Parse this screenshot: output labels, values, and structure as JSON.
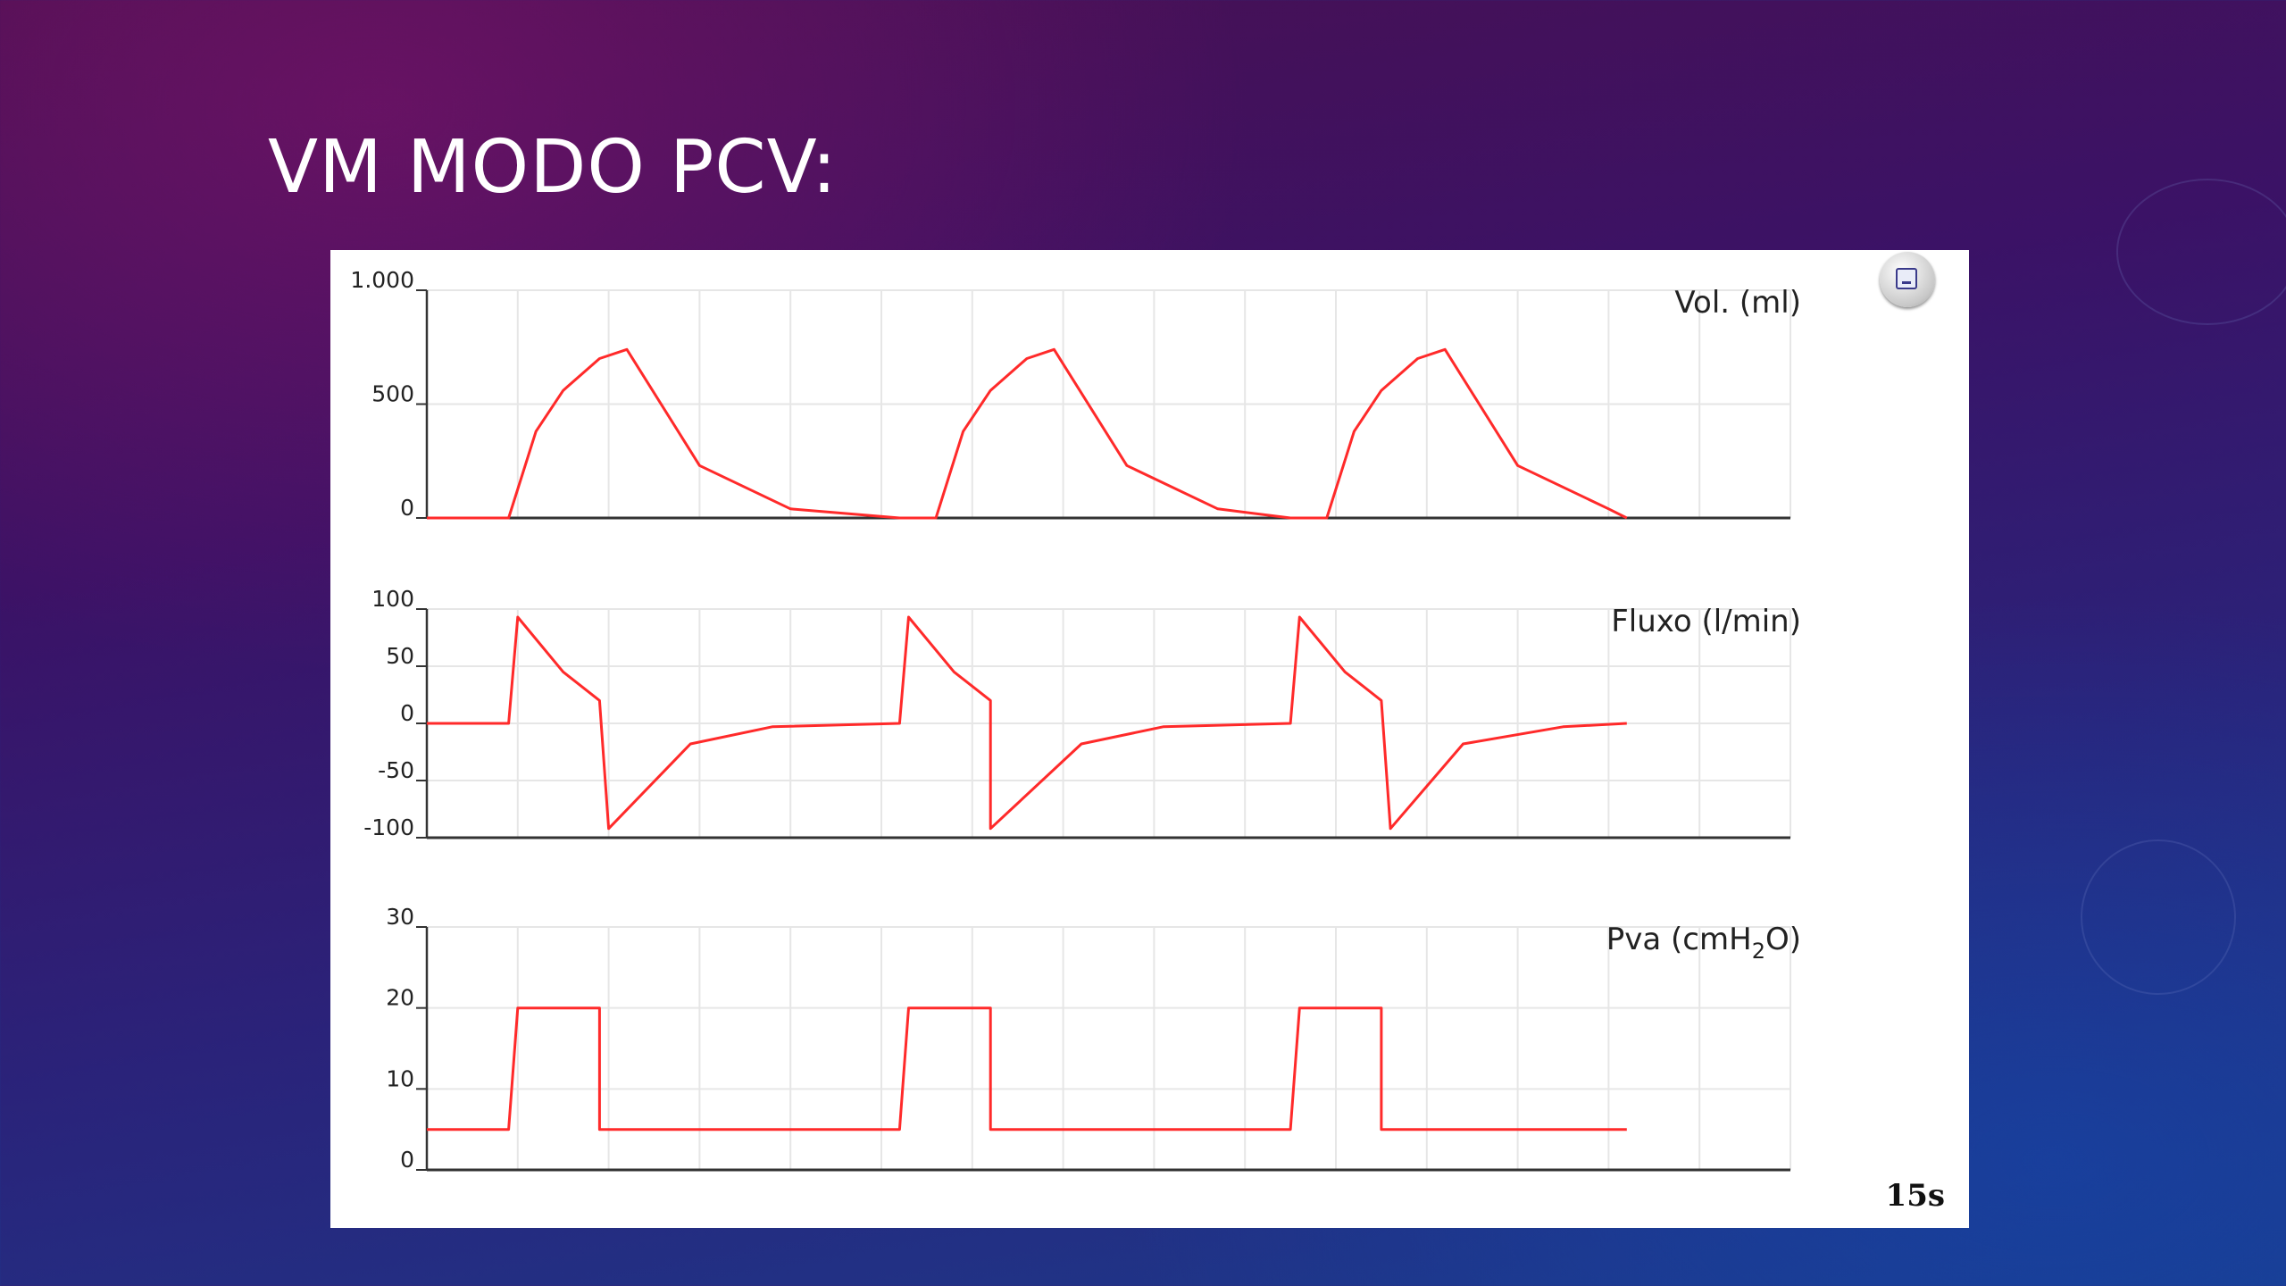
{
  "slide": {
    "title": "VM MODO PCV:"
  },
  "panel": {
    "duration_label": "15s",
    "minimize_icon": "minimize-icon"
  },
  "colors": {
    "trace": "#ff2a2a",
    "grid": "#e6e6e6",
    "axis": "#333333"
  },
  "chart_data": [
    {
      "type": "line",
      "label": "Vol. (ml)",
      "ylim": [
        0,
        1000
      ],
      "yticks": [
        "1.000",
        "500",
        "0"
      ],
      "ytick_values": [
        1000,
        500,
        0
      ],
      "xlim": [
        0,
        15
      ],
      "grid": true,
      "series": [
        {
          "x": [
            0,
            0.9,
            1.2,
            1.5,
            1.9,
            2.2,
            3.0,
            4.0,
            5.2,
            5.6,
            5.9,
            6.2,
            6.6,
            6.9,
            7.7,
            8.7,
            9.5,
            9.9,
            10.2,
            10.5,
            10.9,
            11.2,
            12.0,
            13.0,
            13.2
          ],
          "y": [
            0,
            0,
            380,
            560,
            700,
            740,
            230,
            40,
            0,
            0,
            380,
            560,
            700,
            740,
            230,
            40,
            0,
            0,
            380,
            560,
            700,
            740,
            230,
            40,
            0
          ]
        }
      ]
    },
    {
      "type": "line",
      "label": "Fluxo (l/min)",
      "ylim": [
        -100,
        100
      ],
      "yticks": [
        "100",
        "50",
        "0",
        "-50",
        "-100"
      ],
      "ytick_values": [
        100,
        50,
        0,
        -50,
        -100
      ],
      "xlim": [
        0,
        15
      ],
      "grid": true,
      "series": [
        {
          "x": [
            0,
            0.9,
            1.0,
            1.5,
            1.9,
            2.0,
            2.9,
            3.8,
            5.2,
            5.2,
            5.3,
            5.8,
            6.2,
            6.2,
            7.2,
            8.1,
            9.5,
            9.5,
            9.6,
            10.1,
            10.5,
            10.6,
            11.4,
            12.5,
            13.2
          ],
          "y": [
            0,
            0,
            93,
            45,
            20,
            -92,
            -18,
            -3,
            0,
            0,
            93,
            45,
            20,
            -92,
            -18,
            -3,
            0,
            0,
            93,
            45,
            20,
            -92,
            -18,
            -3,
            0
          ]
        }
      ]
    },
    {
      "type": "line",
      "label": "Pva (cmH",
      "label_sub": "2",
      "label_suffix": "O)",
      "ylim": [
        0,
        30
      ],
      "yticks": [
        "30",
        "20",
        "10",
        "0"
      ],
      "ytick_values": [
        30,
        20,
        10,
        0
      ],
      "xlim": [
        0,
        15
      ],
      "grid": true,
      "series": [
        {
          "x": [
            0,
            0.9,
            1.0,
            1.9,
            1.9,
            5.2,
            5.3,
            6.2,
            6.2,
            9.5,
            9.6,
            10.5,
            10.5,
            13.2
          ],
          "y": [
            5,
            5,
            20,
            20,
            5,
            5,
            20,
            20,
            5,
            5,
            20,
            20,
            5,
            5
          ]
        }
      ]
    }
  ]
}
